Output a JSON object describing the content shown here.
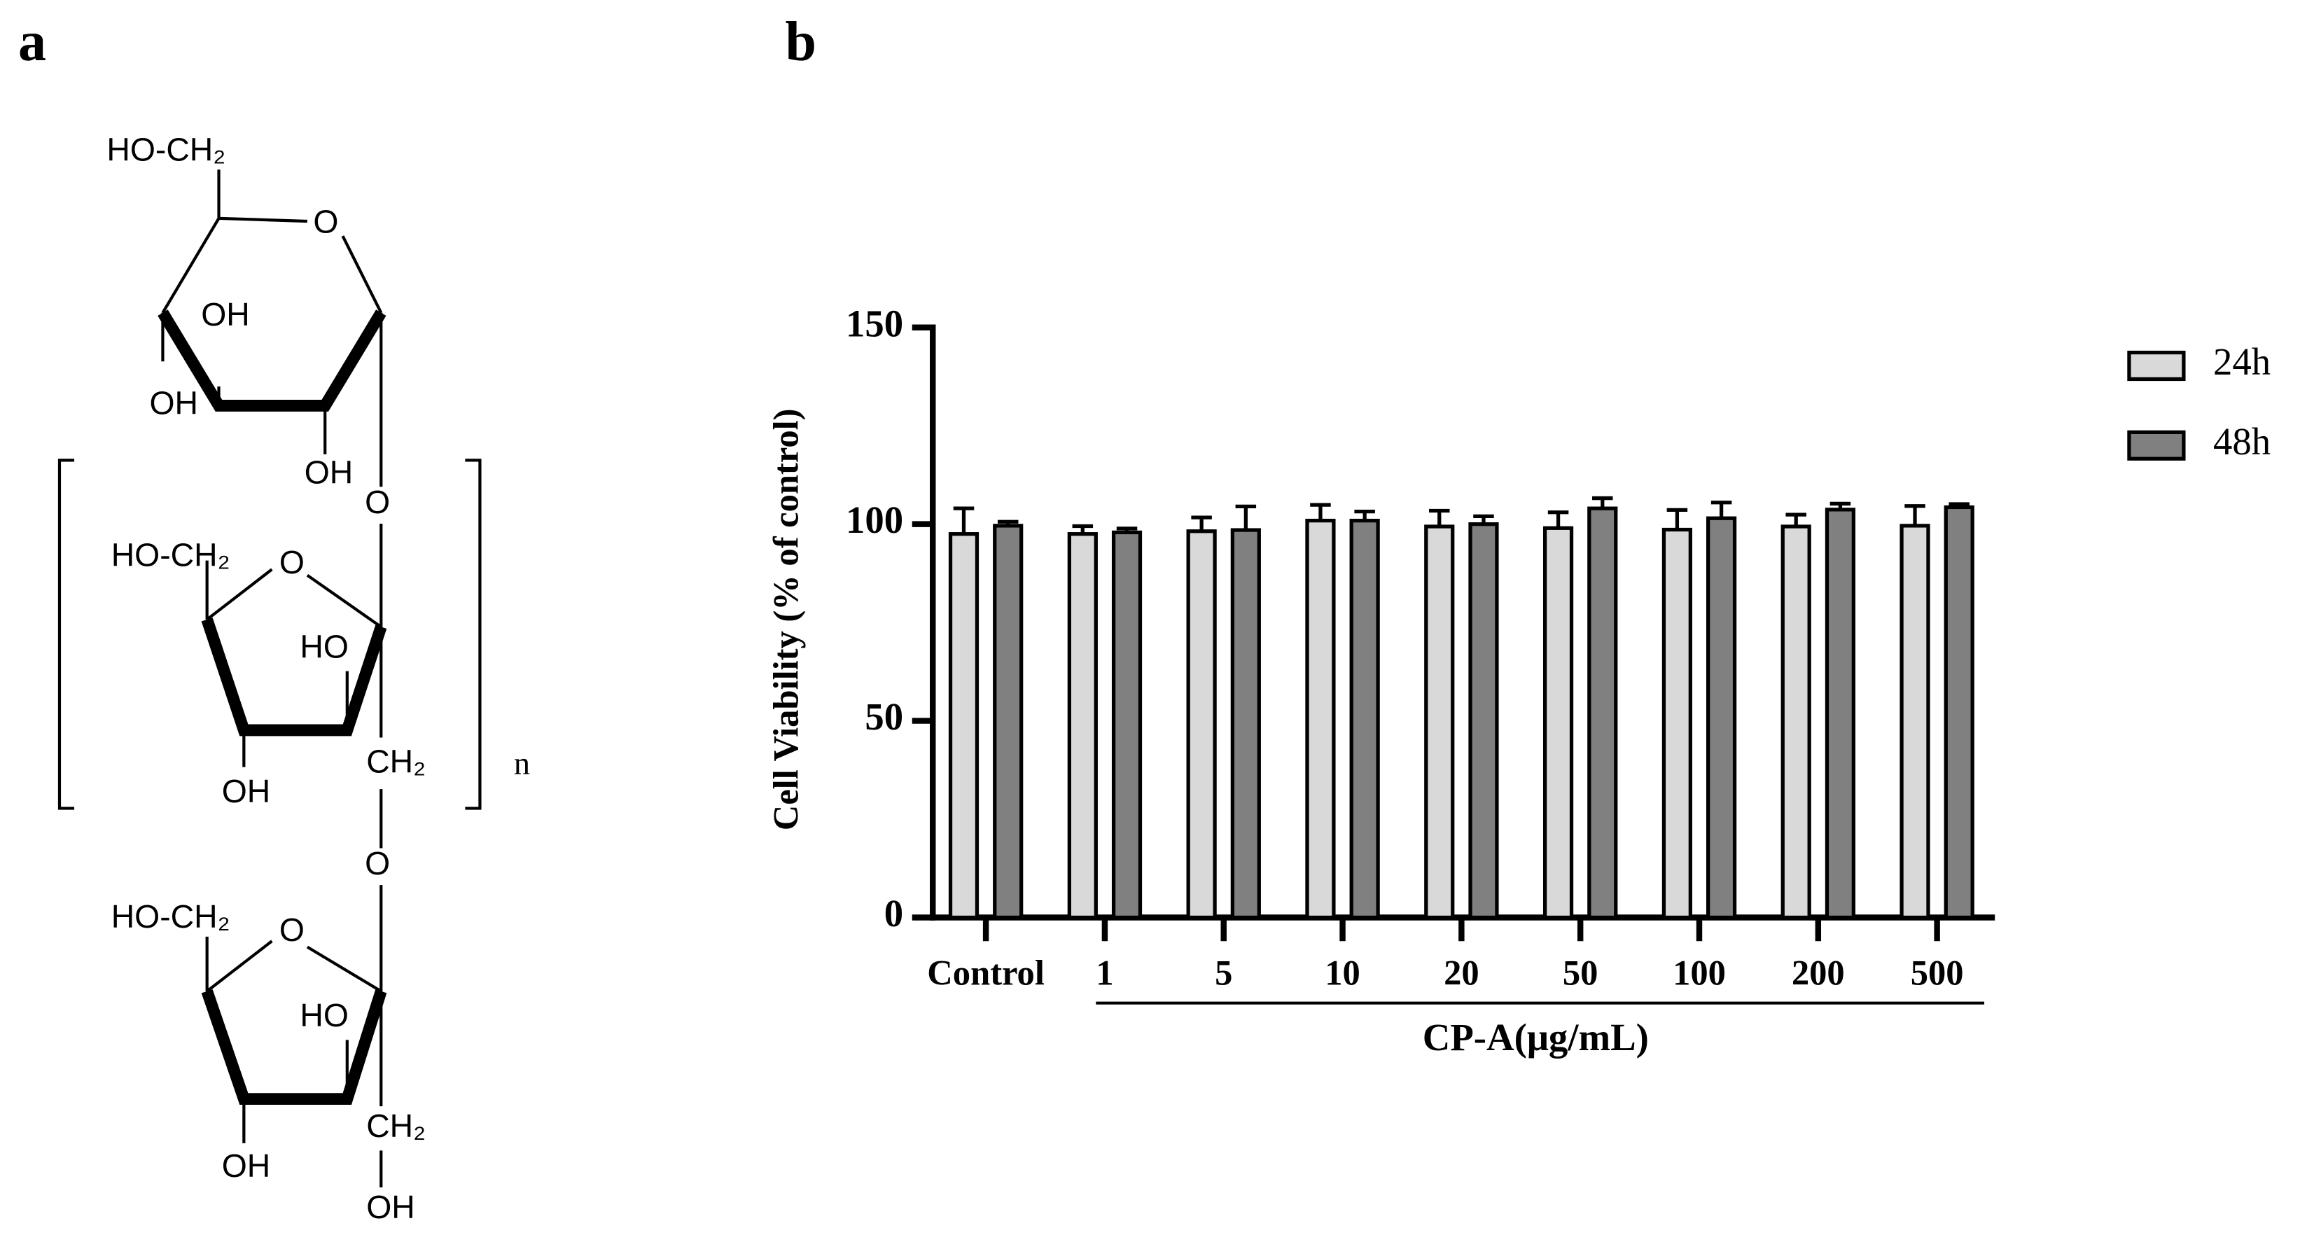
{
  "panel_labels": [
    "a",
    "b"
  ],
  "structure": {
    "labels": [
      "HO-CH₂",
      "O",
      "OH",
      "OH",
      "OH",
      "O",
      "HO-CH₂",
      "O",
      "HO",
      "OH",
      "CH₂",
      "O",
      "HO-CH₂",
      "O",
      "HO",
      "OH",
      "CH₂",
      "OH",
      "n"
    ]
  },
  "chart_data": {
    "type": "bar",
    "y_label": "Cell  Viability (% of control)",
    "x_label": "CP-A(μg/mL)",
    "categories": [
      "Control",
      "1",
      "5",
      "10",
      "20",
      "50",
      "100",
      "200",
      "500"
    ],
    "series": [
      {
        "name": "24h",
        "color": "#d9d9d9",
        "values": [
          97.5,
          97.5,
          98.2,
          100.9,
          99.4,
          99,
          98.6,
          99.4,
          99.6
        ],
        "errors": [
          6.5,
          2,
          3.5,
          4,
          4,
          4,
          5,
          3,
          5
        ]
      },
      {
        "name": "48h",
        "color": "#808080",
        "values": [
          99.6,
          97.9,
          98.5,
          100.9,
          100,
          104,
          101.5,
          103.7,
          104.3
        ],
        "errors": [
          1,
          1,
          6,
          2.3,
          2,
          2.6,
          4,
          1.5,
          0.8
        ]
      }
    ],
    "ylim": [
      0,
      150
    ],
    "yticks": [
      0,
      50,
      100,
      150
    ],
    "legend": "right"
  }
}
